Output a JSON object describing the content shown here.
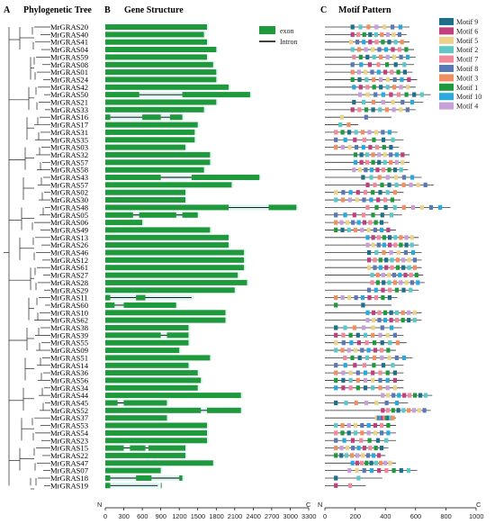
{
  "panels": {
    "a": {
      "letter": "A",
      "title": "Phylogenetic Tree"
    },
    "b": {
      "letter": "B",
      "title": "Gene Structure"
    },
    "c": {
      "letter": "C",
      "title": "Motif  Pattern"
    }
  },
  "genes": [
    "MrGRAS20",
    "MrGRAS40",
    "MrGRAS41",
    "MrGRAS04",
    "MrGRAS59",
    "MrGRAS08",
    "MrGRAS01",
    "MrGRAS24",
    "MrGRAS42",
    "MrGRAS50",
    "MrGRAS21",
    "MrGRAS33",
    "MrGRAS16",
    "MrGRAS17",
    "MrGRAS31",
    "MrGRAS35",
    "MrGRAS03",
    "MrGRAS32",
    "MrGRAS57",
    "MrGRAS58",
    "MrGRAS43",
    "MrGRAS57",
    "MrGRAS02",
    "MrGRAS30",
    "MrGRAS48",
    "MrGRAS05",
    "MrGRAS06",
    "MrGRAS49",
    "MrGRAS13",
    "MrGRAS26",
    "MrGRAS46",
    "MrGRAS12",
    "MrGRAS61",
    "MrGRAS27",
    "MrGRAS28",
    "MrGRAS29",
    "MrGRAS11",
    "MrGRAS60",
    "MrGRAS10",
    "MrGRAS62",
    "MrGRAS38",
    "MrGRAS39",
    "MrGRAS55",
    "MrGRAS09",
    "MrGRAS51",
    "MrGRAS14",
    "MrGRAS36",
    "MrGRAS56",
    "MrGRAS34",
    "MrGRAS44",
    "MrGRAS45",
    "MrGRAS52",
    "MrGRAS37",
    "MrGRAS53",
    "MrGRAS54",
    "MrGRAS23",
    "MrGRAS15",
    "MrGRAS22",
    "MrGRAS47",
    "MrGRAS07",
    "MrGRAS18",
    "MrGRAS19"
  ],
  "gene_structure": {
    "legend": [
      {
        "label": "exon",
        "color": "#1e9a3c"
      },
      {
        "label": "Intron",
        "color": "#000000"
      }
    ],
    "axis": {
      "start": "N",
      "end": "C",
      "ticks": [
        "0",
        "300",
        "600",
        "900",
        "1200",
        "1500",
        "1800",
        "2100",
        "2400",
        "2700",
        "3000",
        "3300"
      ]
    }
  },
  "motif_pattern": {
    "legend": [
      {
        "label": "Motif 9",
        "color": "#1f6f8b"
      },
      {
        "label": "Motif 6",
        "color": "#c0407e"
      },
      {
        "label": "Motif 5",
        "color": "#e8d48a"
      },
      {
        "label": "Motif 2",
        "color": "#5ec8c8"
      },
      {
        "label": "Motif 7",
        "color": "#f08a9a"
      },
      {
        "label": "Motif 8",
        "color": "#5a78b4"
      },
      {
        "label": "Motif 3",
        "color": "#f09060"
      },
      {
        "label": "Motif 1",
        "color": "#1e9a3c"
      },
      {
        "label": "Motif 10",
        "color": "#2aa8e0"
      },
      {
        "label": "Motif 4",
        "color": "#c8a0d8"
      }
    ],
    "axis": {
      "start": "N",
      "end": "C",
      "ticks": [
        "0",
        "200",
        "400",
        "600",
        "800",
        "1000"
      ]
    }
  }
}
